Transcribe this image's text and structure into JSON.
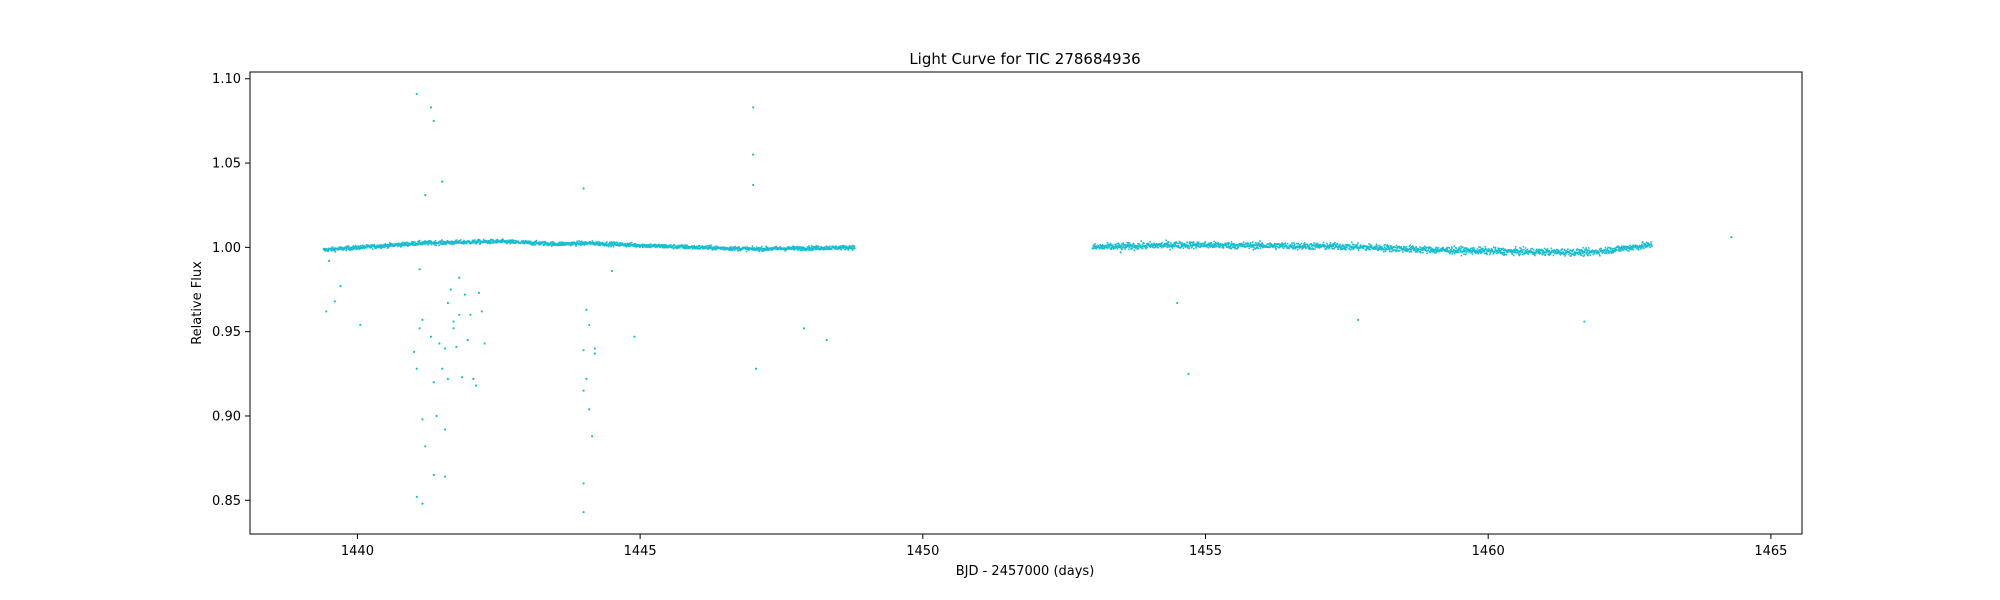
{
  "chart_data": {
    "type": "scatter",
    "title": "Light Curve for TIC 278684936",
    "xlabel": "BJD - 2457000 (days)",
    "ylabel": "Relative Flux",
    "xlim": [
      1438.1,
      1465.55
    ],
    "ylim": [
      0.83,
      1.104
    ],
    "xticks": [
      1440,
      1445,
      1450,
      1455,
      1460,
      1465
    ],
    "xtick_labels": [
      "1440",
      "1445",
      "1450",
      "1455",
      "1460",
      "1465"
    ],
    "yticks": [
      0.85,
      0.9,
      0.95,
      1.0,
      1.05,
      1.1
    ],
    "ytick_labels": [
      "0.85",
      "0.90",
      "0.95",
      "1.00",
      "1.05",
      "1.10"
    ],
    "grid": false,
    "legend": "none",
    "marker_color": "#17becf",
    "series": [
      {
        "segments": [
          {
            "x_start": 1439.4,
            "x_end": 1448.8,
            "baseline": [
              [
                1439.4,
                0.9985
              ],
              [
                1440.5,
                1.001
              ],
              [
                1441.1,
                1.0025
              ],
              [
                1442.5,
                1.0035
              ],
              [
                1443.5,
                1.002
              ],
              [
                1444.1,
                1.0025
              ],
              [
                1445.5,
                1.0005
              ],
              [
                1447.0,
                0.999
              ],
              [
                1448.8,
                1.0
              ]
            ],
            "scatter": 0.0012
          },
          {
            "x_start": 1453.0,
            "x_end": 1462.9,
            "baseline": [
              [
                1453.0,
                1.0
              ],
              [
                1454.5,
                1.0015
              ],
              [
                1456.0,
                1.001
              ],
              [
                1457.5,
                1.0005
              ],
              [
                1459.0,
                0.9985
              ],
              [
                1460.5,
                0.9975
              ],
              [
                1461.8,
                0.997
              ],
              [
                1462.9,
                1.0015
              ]
            ],
            "scatter": 0.002
          }
        ],
        "outliers": [
          [
            1439.5,
            0.992
          ],
          [
            1439.45,
            0.962
          ],
          [
            1439.6,
            0.968
          ],
          [
            1439.7,
            0.977
          ],
          [
            1440.05,
            0.954
          ],
          [
            1441.05,
            1.091
          ],
          [
            1441.3,
            1.083
          ],
          [
            1441.35,
            1.075
          ],
          [
            1441.2,
            1.031
          ],
          [
            1441.5,
            1.039
          ],
          [
            1441.1,
            0.987
          ],
          [
            1441.0,
            0.938
          ],
          [
            1441.05,
            0.928
          ],
          [
            1441.1,
            0.952
          ],
          [
            1441.15,
            0.898
          ],
          [
            1441.2,
            0.882
          ],
          [
            1441.15,
            0.957
          ],
          [
            1441.3,
            0.947
          ],
          [
            1441.35,
            0.92
          ],
          [
            1441.4,
            0.9
          ],
          [
            1441.45,
            0.943
          ],
          [
            1441.5,
            0.928
          ],
          [
            1441.55,
            0.94
          ],
          [
            1441.6,
            0.967
          ],
          [
            1441.6,
            0.922
          ],
          [
            1441.65,
            0.975
          ],
          [
            1441.7,
            0.952
          ],
          [
            1441.75,
            0.941
          ],
          [
            1441.8,
            0.982
          ],
          [
            1441.8,
            0.96
          ],
          [
            1441.85,
            0.923
          ],
          [
            1441.9,
            0.972
          ],
          [
            1441.95,
            0.945
          ],
          [
            1442.0,
            0.96
          ],
          [
            1442.05,
            0.922
          ],
          [
            1442.1,
            0.918
          ],
          [
            1442.15,
            0.973
          ],
          [
            1442.2,
            0.962
          ],
          [
            1442.25,
            0.943
          ],
          [
            1441.7,
            0.956
          ],
          [
            1441.05,
            0.852
          ],
          [
            1441.15,
            0.848
          ],
          [
            1441.35,
            0.865
          ],
          [
            1441.55,
            0.864
          ],
          [
            1441.55,
            0.892
          ],
          [
            1444.0,
            1.035
          ],
          [
            1444.0,
            0.939
          ],
          [
            1444.05,
            0.963
          ],
          [
            1444.1,
            0.954
          ],
          [
            1444.05,
            0.922
          ],
          [
            1444.0,
            0.915
          ],
          [
            1444.1,
            0.904
          ],
          [
            1444.15,
            0.888
          ],
          [
            1444.2,
            0.937
          ],
          [
            1444.2,
            0.94
          ],
          [
            1444.0,
            0.86
          ],
          [
            1444.0,
            0.843
          ],
          [
            1444.5,
            0.986
          ],
          [
            1444.9,
            0.947
          ],
          [
            1447.0,
            1.083
          ],
          [
            1447.0,
            1.055
          ],
          [
            1447.0,
            1.037
          ],
          [
            1447.05,
            0.928
          ],
          [
            1447.9,
            0.952
          ],
          [
            1448.3,
            0.945
          ],
          [
            1453.5,
            0.997
          ],
          [
            1454.5,
            0.967
          ],
          [
            1454.7,
            0.925
          ],
          [
            1457.7,
            0.957
          ],
          [
            1461.7,
            0.956
          ],
          [
            1464.3,
            1.006
          ]
        ]
      }
    ]
  }
}
